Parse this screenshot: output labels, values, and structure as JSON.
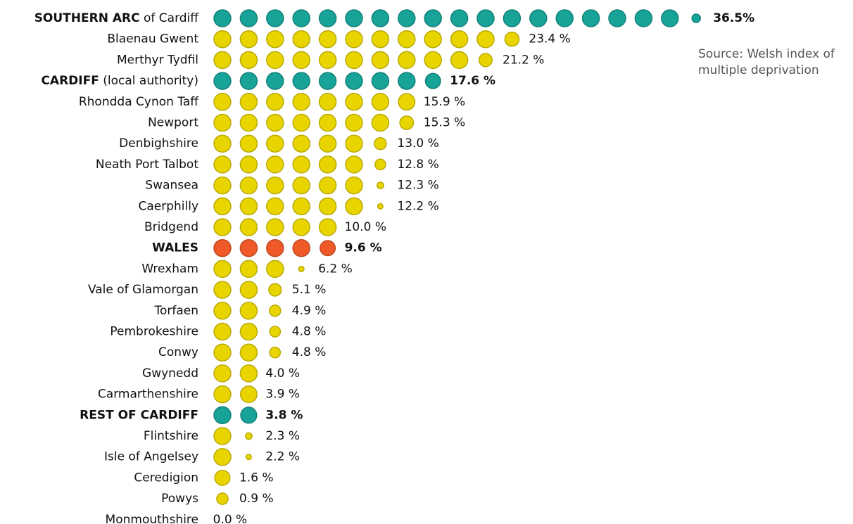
{
  "chart_data": {
    "type": "dot",
    "categories": [
      "SOUTHERN ARC of Cardiff",
      "Blaenau Gwent",
      "Merthyr Tydfil",
      "CARDIFF (local authority)",
      "Rhondda Cynon Taff",
      "Newport",
      "Denbighshire",
      "Neath Port Talbot",
      "Swansea",
      "Caerphilly",
      "Bridgend",
      "WALES",
      "Wrexham",
      "Vale of Glamorgan",
      "Torfaen",
      "Pembrokeshire",
      "Conwy",
      "Gwynedd",
      "Carmarthenshire",
      "REST OF CARDIFF",
      "Flintshire",
      "Isle of Angelsey",
      "Ceredigion",
      "Powys",
      "Monmouthshire"
    ],
    "values": [
      36.5,
      23.4,
      21.2,
      17.6,
      15.9,
      15.3,
      13.0,
      12.8,
      12.3,
      12.2,
      10.0,
      9.6,
      6.2,
      5.1,
      4.9,
      4.8,
      4.8,
      4.0,
      3.9,
      3.8,
      2.3,
      2.2,
      1.6,
      0.9,
      0.0
    ],
    "value_labels": [
      "36.5%",
      "23.4 %",
      "21.2 %",
      "17.6 %",
      "15.9 %",
      "15.3 %",
      "13.0 %",
      "12.8 %",
      "12.3 %",
      "12.2 %",
      "10.0 %",
      "9.6 %",
      "6.2 %",
      "5.1 %",
      "4.9 %",
      "4.8 %",
      "4.8 %",
      "4.0 %",
      "3.9 %",
      "3.8 %",
      "2.3 %",
      "2.2 %",
      "1.6 %",
      "0.9 %",
      "0.0 %"
    ],
    "colors": [
      "#17a398",
      "#e8d500",
      "#e8d500",
      "#17a398",
      "#e8d500",
      "#e8d500",
      "#e8d500",
      "#e8d500",
      "#e8d500",
      "#e8d500",
      "#e8d500",
      "#f05a28",
      "#e8d500",
      "#e8d500",
      "#e8d500",
      "#e8d500",
      "#e8d500",
      "#e8d500",
      "#e8d500",
      "#17a398",
      "#e8d500",
      "#e8d500",
      "#e8d500",
      "#e8d500",
      "#e8d500"
    ],
    "dot_unit": 2,
    "annotation": "Source: Welsh index of multiple deprivation"
  }
}
